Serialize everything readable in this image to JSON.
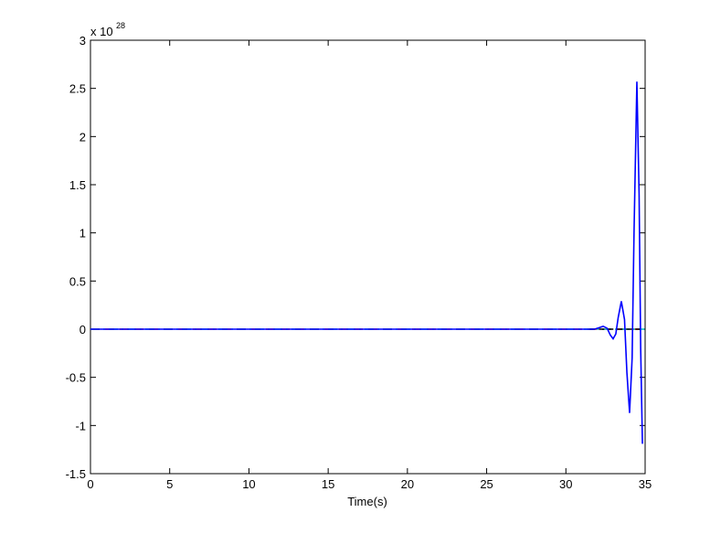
{
  "chart_data": {
    "type": "line",
    "xlabel": "Time(s)",
    "y_multiplier": "x 10",
    "y_exponent": "28",
    "xlim": [
      0,
      35
    ],
    "ylim": [
      -1.5,
      3
    ],
    "xticks": [
      0,
      5,
      10,
      15,
      20,
      25,
      30,
      35
    ],
    "yticks": [
      -1.5,
      -1,
      -0.5,
      0,
      0.5,
      1,
      1.5,
      2,
      2.5,
      3
    ],
    "grid": false,
    "series": [
      {
        "color": "#ff0000",
        "dash": "10,6",
        "x": [
          0,
          35
        ],
        "values": [
          0,
          0
        ]
      },
      {
        "color": "#00bfbf",
        "dash": "10,4,2,4",
        "x": [
          0,
          35
        ],
        "values": [
          0,
          0
        ]
      },
      {
        "color": "#000000",
        "dash": "6,4",
        "x": [
          31.5,
          35
        ],
        "values": [
          0,
          0
        ]
      },
      {
        "color": "#0000ff",
        "dash": "",
        "x": [
          0,
          31,
          31.8,
          32.1,
          32.35,
          32.6,
          32.8,
          32.98,
          33.15,
          33.3,
          33.5,
          33.7,
          33.85,
          34.02,
          34.18,
          34.3,
          34.48,
          34.62,
          34.72,
          34.83
        ],
        "values": [
          0,
          0,
          0,
          0.015,
          0.03,
          0.01,
          -0.06,
          -0.1,
          -0.05,
          0.12,
          0.29,
          0.1,
          -0.45,
          -0.87,
          -0.3,
          1.0,
          2.57,
          1.4,
          -0.2,
          -1.19
        ]
      }
    ]
  }
}
